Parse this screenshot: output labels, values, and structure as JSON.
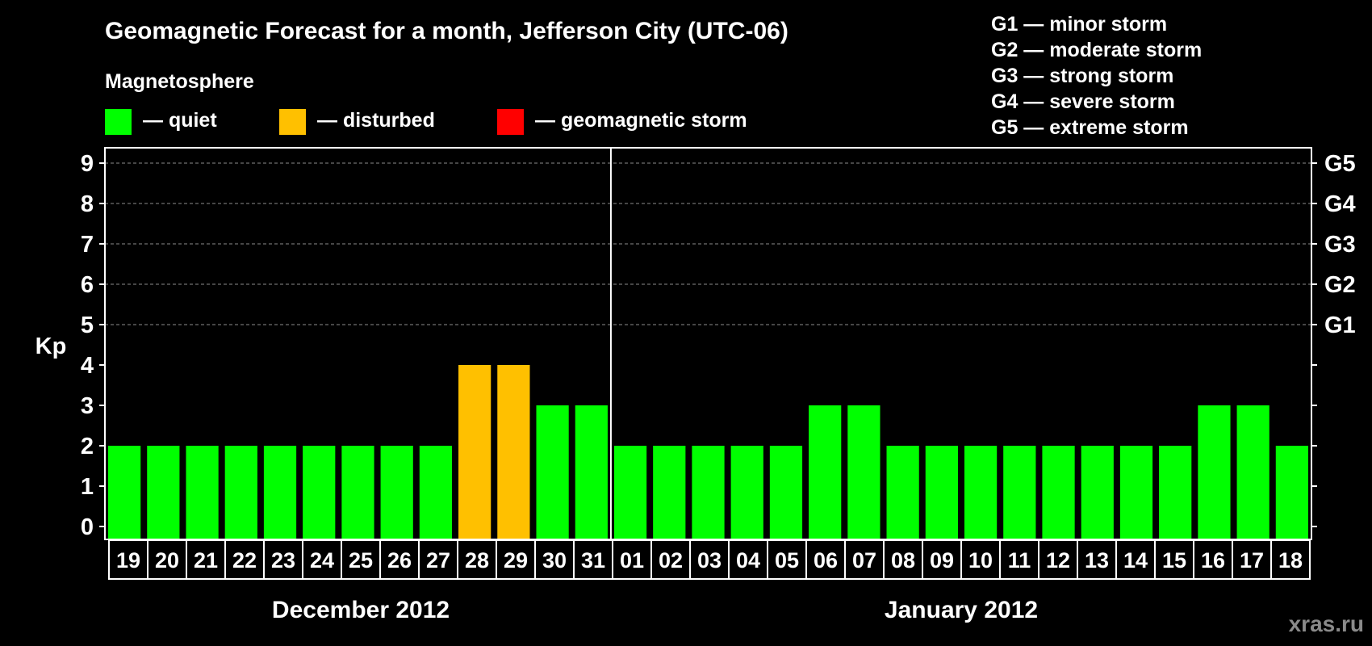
{
  "chart_data": {
    "type": "bar",
    "title": "Geomagnetic Forecast for a month, Jefferson City (UTC-06)",
    "subtitle": "Magnetosphere",
    "ylabel": "Kp",
    "ylim": [
      0,
      9
    ],
    "yticks": [
      "0",
      "1",
      "2",
      "3",
      "4",
      "5",
      "6",
      "7",
      "8",
      "9"
    ],
    "right_ticks": [
      {
        "value": 5,
        "label": "G1"
      },
      {
        "value": 6,
        "label": "G2"
      },
      {
        "value": 7,
        "label": "G3"
      },
      {
        "value": 8,
        "label": "G4"
      },
      {
        "value": 9,
        "label": "G5"
      }
    ],
    "grid": true,
    "legend": [
      {
        "label": "— quiet",
        "color": "#00ff00"
      },
      {
        "label": "— disturbed",
        "color": "#ffc000"
      },
      {
        "label": "— geomagnetic storm",
        "color": "#ff0000"
      }
    ],
    "storm_scale": [
      "G1 — minor storm",
      "G2 — moderate storm",
      "G3 — strong storm",
      "G4 — severe storm",
      "G5 — extreme storm"
    ],
    "categories": [
      "19",
      "20",
      "21",
      "22",
      "23",
      "24",
      "25",
      "26",
      "27",
      "28",
      "29",
      "30",
      "31",
      "01",
      "02",
      "03",
      "04",
      "05",
      "06",
      "07",
      "08",
      "09",
      "10",
      "11",
      "12",
      "13",
      "14",
      "15",
      "16",
      "17",
      "18"
    ],
    "values": [
      2,
      2,
      2,
      2,
      2,
      2,
      2,
      2,
      2,
      4,
      4,
      3,
      3,
      2,
      2,
      2,
      2,
      2,
      3,
      3,
      2,
      2,
      2,
      2,
      2,
      2,
      2,
      2,
      3,
      3,
      2
    ],
    "bar_colors": [
      "#00ff00",
      "#00ff00",
      "#00ff00",
      "#00ff00",
      "#00ff00",
      "#00ff00",
      "#00ff00",
      "#00ff00",
      "#00ff00",
      "#ffc000",
      "#ffc000",
      "#00ff00",
      "#00ff00",
      "#00ff00",
      "#00ff00",
      "#00ff00",
      "#00ff00",
      "#00ff00",
      "#00ff00",
      "#00ff00",
      "#00ff00",
      "#00ff00",
      "#00ff00",
      "#00ff00",
      "#00ff00",
      "#00ff00",
      "#00ff00",
      "#00ff00",
      "#00ff00",
      "#00ff00",
      "#00ff00"
    ],
    "months": [
      {
        "label": "December 2012",
        "first_index": 0,
        "last_index": 12
      },
      {
        "label": "January 2012",
        "first_index": 13,
        "last_index": 30
      }
    ]
  },
  "watermark": "xras.ru"
}
